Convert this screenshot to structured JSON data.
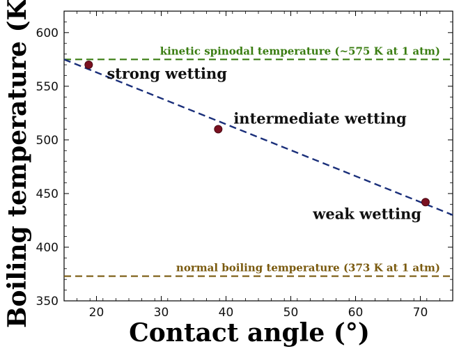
{
  "chart_data": {
    "type": "scatter",
    "title": "",
    "xlabel": "Contact angle (°)",
    "ylabel": "Boiling temperature (K)",
    "xlim": [
      15,
      75
    ],
    "ylim": [
      350,
      620
    ],
    "xticks": [
      20,
      30,
      40,
      50,
      60,
      70
    ],
    "yticks": [
      350,
      400,
      450,
      500,
      550,
      600
    ],
    "grid": false,
    "points": [
      {
        "x": 18.8,
        "y": 570,
        "label": "strong wetting"
      },
      {
        "x": 38.8,
        "y": 510,
        "label": "intermediate wetting"
      },
      {
        "x": 70.8,
        "y": 442,
        "label": "weak wetting"
      }
    ],
    "fit_line": {
      "x": [
        15,
        75
      ],
      "y": [
        575,
        430
      ],
      "style": "dashed",
      "color": "#1a2f7a"
    },
    "reference_lines": [
      {
        "y": 575,
        "label": "kinetic spinodal temperature (~575 K at 1 atm)",
        "color": "#3a7d12"
      },
      {
        "y": 373,
        "label": "normal boiling temperature (373 K at 1 atm)",
        "color": "#7a5a0f"
      }
    ],
    "marker_color": "#7a1020"
  }
}
